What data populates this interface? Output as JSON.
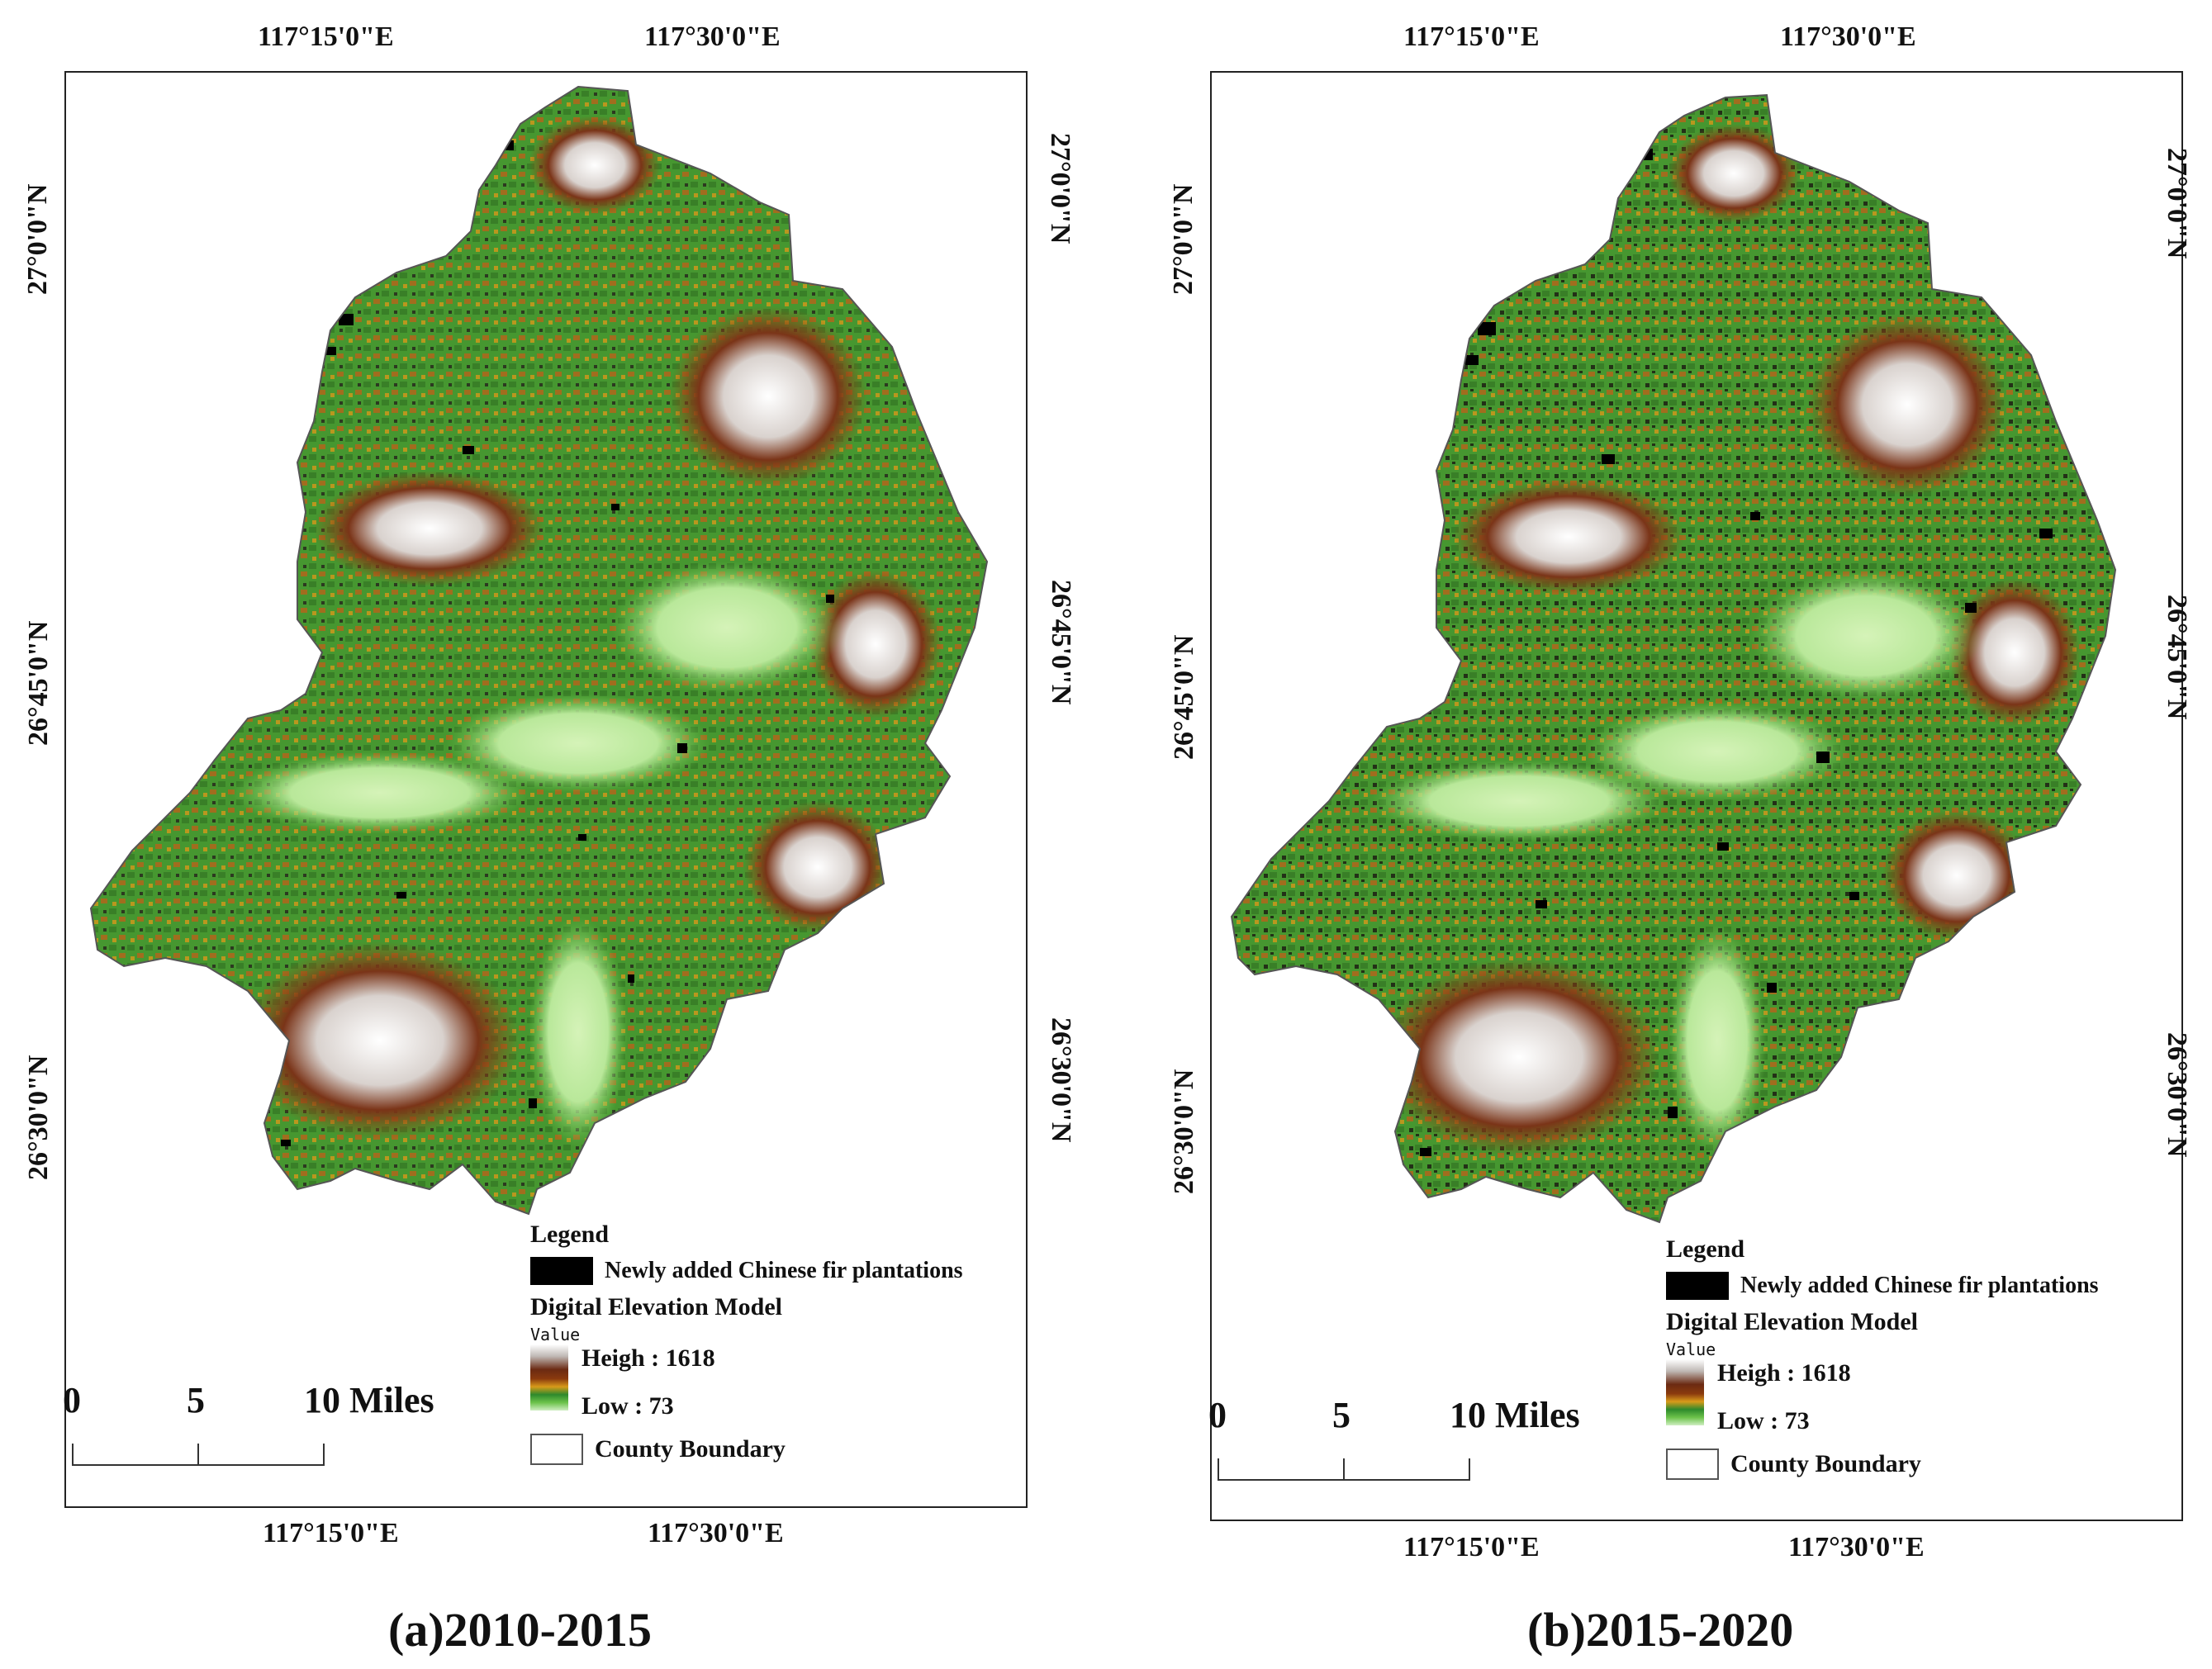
{
  "panels": [
    {
      "top_labels": [
        "117°15'0\"E",
        "117°30'0\"E"
      ],
      "bottom_labels": [
        "117°15'0\"E",
        "117°30'0\"E"
      ],
      "left_labels": [
        "27°0'0\"N",
        "26°45'0\"N",
        "26°30'0\"N"
      ],
      "right_labels": [
        "27°0'0\"N",
        "26°45'0\"N",
        "26°30'0\"N"
      ],
      "legend": {
        "title": "Legend",
        "fir_label": "Newly added Chinese fir plantations",
        "dem_title": "Digital Elevation Model",
        "value_label": "Value",
        "high_label": "Heigh  : 1618",
        "low_label": "Low : 73",
        "boundary_label": "County Boundary"
      },
      "scale": {
        "n0": "0",
        "n1": "5",
        "n2": "10 Miles"
      },
      "caption": "(a)2010-2015"
    },
    {
      "top_labels": [
        "117°15'0\"E",
        "117°30'0\"E"
      ],
      "bottom_labels": [
        "117°15'0\"E",
        "117°30'0\"E"
      ],
      "left_labels": [
        "27°0'0\"N",
        "26°45'0\"N",
        "26°30'0\"N"
      ],
      "right_labels": [
        "27°0'0\"N",
        "26°45'0\"N",
        "26°30'0\"N"
      ],
      "legend": {
        "title": "Legend",
        "fir_label": "Newly added Chinese fir plantations",
        "dem_title": "Digital Elevation Model",
        "value_label": "Value",
        "high_label": "Heigh  : 1618",
        "low_label": "Low : 73",
        "boundary_label": "County Boundary"
      },
      "scale": {
        "n0": "0",
        "n1": "5",
        "n2": "10 Miles"
      },
      "caption": "(b)2015-2020"
    }
  ],
  "colors": {
    "high": "#ffffff",
    "brown": "#6b2a12",
    "orange": "#d89a1a",
    "green": "#2e8a2c",
    "low": "#cfeec2",
    "fir": "#000000"
  }
}
